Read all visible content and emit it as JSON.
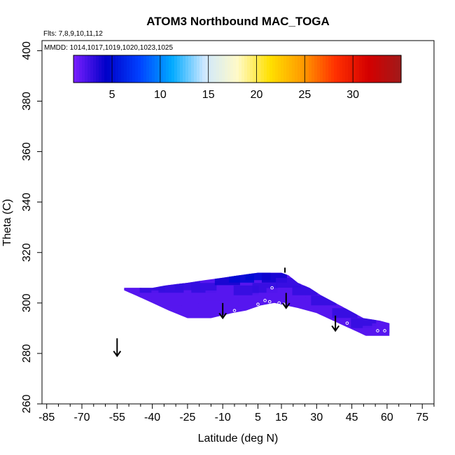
{
  "chart_data": {
    "type": "heatmap",
    "title": "ATOM3 Northbound MAC_TOGA",
    "subtitle_flights": "Flts: 7,8,9,10,11,12",
    "subtitle_dates": "MMDD: 1014,1017,1019,1020,1023,1025",
    "xlabel": "Latitude (deg N)",
    "ylabel": "Theta (C)",
    "xlim": [
      -87,
      80
    ],
    "ylim": [
      260,
      404
    ],
    "x_ticks": [
      "-85",
      "-70",
      "-55",
      "-40",
      "-25",
      "-10",
      "5",
      "15",
      "30",
      "45",
      "60",
      "75"
    ],
    "y_ticks": [
      "260",
      "280",
      "300",
      "320",
      "340",
      "360",
      "380",
      "400"
    ],
    "colorbar": {
      "range": [
        1,
        35
      ],
      "ticks": [
        "5",
        "10",
        "15",
        "20",
        "25",
        "30"
      ],
      "stops": [
        "#7a1fff",
        "#0000c8",
        "#0040ff",
        "#00aaff",
        "#cfe8ff",
        "#fffac8",
        "#ffe000",
        "#ff9a00",
        "#ff3000",
        "#d40000",
        "#a01a1a"
      ]
    },
    "data_region": {
      "upper_boundary": [
        [
          -52,
          306
        ],
        [
          -45,
          306
        ],
        [
          -40,
          306
        ],
        [
          -34,
          307
        ],
        [
          -25,
          308
        ],
        [
          -18,
          309
        ],
        [
          -10,
          310
        ],
        [
          -3,
          311
        ],
        [
          5,
          312
        ],
        [
          10,
          312
        ],
        [
          15,
          312
        ],
        [
          18,
          311
        ],
        [
          22,
          308
        ],
        [
          27,
          306
        ],
        [
          32,
          303
        ],
        [
          38,
          300
        ],
        [
          44,
          297
        ],
        [
          50,
          294
        ],
        [
          57,
          293
        ],
        [
          61,
          292
        ]
      ],
      "lower_boundary": [
        [
          61,
          287
        ],
        [
          51,
          287
        ],
        [
          44,
          290
        ],
        [
          37,
          293
        ],
        [
          30,
          296
        ],
        [
          22,
          298
        ],
        [
          17,
          299
        ],
        [
          12,
          300
        ],
        [
          6,
          299
        ],
        [
          0,
          297
        ],
        [
          -6,
          296
        ],
        [
          -15,
          294
        ],
        [
          -25,
          294
        ],
        [
          -33,
          297
        ],
        [
          -40,
          300
        ],
        [
          -47,
          303
        ],
        [
          -52,
          305
        ]
      ],
      "value_description": "mostly low values (1-5), purple to dark blue"
    },
    "cells": [
      {
        "lat": -50,
        "theta": 306,
        "v": 2
      },
      {
        "lat": -45,
        "theta": 304,
        "v": 2
      },
      {
        "lat": -40,
        "theta": 306,
        "v": 3
      },
      {
        "lat": -35,
        "theta": 303,
        "v": 2
      },
      {
        "lat": -32,
        "theta": 306,
        "v": 3
      },
      {
        "lat": -28,
        "theta": 301,
        "v": 2
      },
      {
        "lat": -25,
        "theta": 307,
        "v": 3
      },
      {
        "lat": -22,
        "theta": 300,
        "v": 2
      },
      {
        "lat": -18,
        "theta": 306,
        "v": 3
      },
      {
        "lat": -15,
        "theta": 298,
        "v": 2
      },
      {
        "lat": -12,
        "theta": 303,
        "v": 2
      },
      {
        "lat": -8,
        "theta": 309,
        "v": 4
      },
      {
        "lat": -6,
        "theta": 299,
        "v": 2
      },
      {
        "lat": -2,
        "theta": 310,
        "v": 5
      },
      {
        "lat": 0,
        "theta": 305,
        "v": 3
      },
      {
        "lat": 2,
        "theta": 300,
        "v": 2
      },
      {
        "lat": 5,
        "theta": 311,
        "v": 5
      },
      {
        "lat": 8,
        "theta": 306,
        "v": 3
      },
      {
        "lat": 8,
        "theta": 302,
        "v": 2
      },
      {
        "lat": 12,
        "theta": 310,
        "v": 4
      },
      {
        "lat": 14,
        "theta": 304,
        "v": 2
      },
      {
        "lat": 18,
        "theta": 308,
        "v": 3
      },
      {
        "lat": 20,
        "theta": 302,
        "v": 2
      },
      {
        "lat": 25,
        "theta": 305,
        "v": 3
      },
      {
        "lat": 28,
        "theta": 300,
        "v": 2
      },
      {
        "lat": 33,
        "theta": 301,
        "v": 3
      },
      {
        "lat": 36,
        "theta": 297,
        "v": 2
      },
      {
        "lat": 42,
        "theta": 296,
        "v": 3
      },
      {
        "lat": 45,
        "theta": 292,
        "v": 2
      },
      {
        "lat": 50,
        "theta": 292,
        "v": 3
      },
      {
        "lat": 55,
        "theta": 289,
        "v": 2
      },
      {
        "lat": 59,
        "theta": 290,
        "v": 2
      }
    ],
    "points": [
      {
        "lat": 8,
        "theta": 301
      },
      {
        "lat": 10,
        "theta": 300.5
      },
      {
        "lat": 14,
        "theta": 300
      },
      {
        "lat": 16,
        "theta": 299.5
      },
      {
        "lat": 11,
        "theta": 306
      },
      {
        "lat": 5,
        "theta": 299.5
      },
      {
        "lat": -5,
        "theta": 297
      },
      {
        "lat": 43,
        "theta": 292
      },
      {
        "lat": 56,
        "theta": 289
      },
      {
        "lat": 59,
        "theta": 289
      },
      {
        "lat": 17,
        "theta": 298
      }
    ],
    "arrows": [
      {
        "lat": -55,
        "theta_top": 286,
        "theta_tip": 279
      },
      {
        "lat": -10,
        "theta_top": 300,
        "theta_tip": 294
      },
      {
        "lat": 17,
        "theta_top": 304,
        "theta_tip": 298
      },
      {
        "lat": 38,
        "theta_top": 295,
        "theta_tip": 289
      }
    ],
    "tick_marks": [
      {
        "lat": 16.5,
        "theta_bottom": 312,
        "theta_top": 314
      }
    ]
  }
}
